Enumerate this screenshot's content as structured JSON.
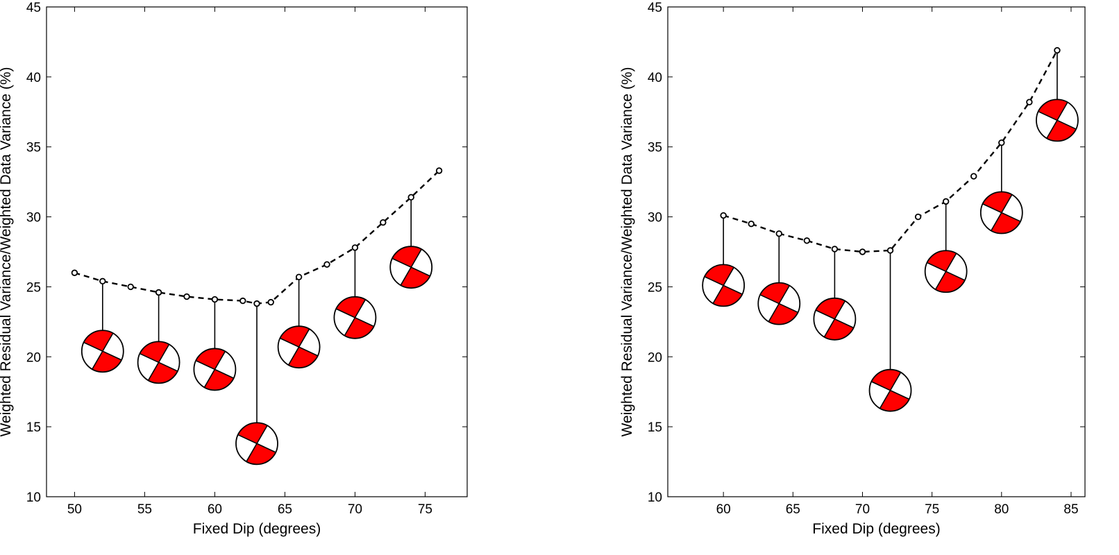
{
  "chart_data": [
    {
      "type": "line",
      "xlabel": "Fixed Dip (degrees)",
      "ylabel": "Weighted Residual Variance/Weighted Data Variance (%)",
      "xlim": [
        48,
        78
      ],
      "ylim": [
        10,
        45
      ],
      "xticks": [
        50,
        55,
        60,
        65,
        70,
        75
      ],
      "yticks": [
        10,
        15,
        20,
        25,
        30,
        35,
        40,
        45
      ],
      "grid": false,
      "series": [
        {
          "x": [
            50,
            52,
            54,
            56,
            58,
            60,
            62,
            63,
            64,
            66,
            68,
            70,
            72,
            74,
            76
          ],
          "y": [
            26.0,
            25.4,
            25.0,
            24.6,
            24.3,
            24.1,
            24.0,
            23.8,
            23.9,
            25.7,
            26.6,
            27.8,
            29.6,
            31.4,
            33.3
          ]
        }
      ],
      "beachballs": [
        {
          "dip": 52,
          "y": 20.4
        },
        {
          "dip": 56,
          "y": 19.6
        },
        {
          "dip": 60,
          "y": 19.1
        },
        {
          "dip": 63,
          "y": 13.8
        },
        {
          "dip": 66,
          "y": 20.7
        },
        {
          "dip": 70,
          "y": 22.8
        },
        {
          "dip": 74,
          "y": 26.4
        }
      ],
      "colors": {
        "line": "#000000",
        "beachball_fill": "#ff0000"
      }
    },
    {
      "type": "line",
      "xlabel": "Fixed Dip (degrees)",
      "ylabel": "Weighted Residual Variance/Weighted Data Variance (%)",
      "xlim": [
        56,
        86
      ],
      "ylim": [
        10,
        45
      ],
      "xticks": [
        60,
        65,
        70,
        75,
        80,
        85
      ],
      "yticks": [
        10,
        15,
        20,
        25,
        30,
        35,
        40,
        45
      ],
      "grid": false,
      "series": [
        {
          "x": [
            60,
            62,
            64,
            66,
            68,
            70,
            72,
            74,
            76,
            78,
            80,
            82,
            84
          ],
          "y": [
            30.1,
            29.5,
            28.8,
            28.3,
            27.7,
            27.5,
            27.6,
            30.0,
            31.1,
            32.9,
            35.3,
            38.2,
            41.9
          ]
        }
      ],
      "beachballs": [
        {
          "dip": 60,
          "y": 25.1
        },
        {
          "dip": 64,
          "y": 23.8
        },
        {
          "dip": 68,
          "y": 22.7
        },
        {
          "dip": 72,
          "y": 17.6
        },
        {
          "dip": 76,
          "y": 26.1
        },
        {
          "dip": 80,
          "y": 30.3
        },
        {
          "dip": 84,
          "y": 36.9
        }
      ],
      "colors": {
        "line": "#000000",
        "beachball_fill": "#ff0000"
      }
    }
  ]
}
